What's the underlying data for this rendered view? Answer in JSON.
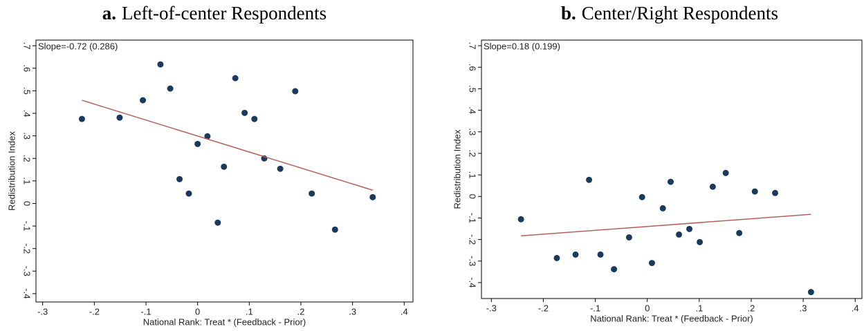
{
  "chart_data": [
    {
      "type": "scatter",
      "panel_label": "a.",
      "title": "Left-of-center Respondents",
      "xlabel": "National Rank: Treat * (Feedback - Prior)",
      "ylabel": "Redistribution Index",
      "annotation": "Slope=-0.72 (0.286)",
      "x": [
        -0.224,
        -0.151,
        -0.106,
        -0.072,
        -0.053,
        -0.035,
        -0.017,
        0.0,
        0.019,
        0.039,
        0.051,
        0.073,
        0.091,
        0.11,
        0.129,
        0.16,
        0.189,
        0.221,
        0.266,
        0.339
      ],
      "values": [
        0.375,
        0.381,
        0.458,
        0.617,
        0.51,
        0.108,
        0.044,
        0.264,
        0.298,
        -0.085,
        0.163,
        0.556,
        0.402,
        0.375,
        0.2,
        0.154,
        0.498,
        0.044,
        -0.116,
        0.028
      ],
      "color": "#1a3a5c",
      "fit_line": {
        "x": [
          -0.224,
          0.339
        ],
        "values": [
          0.458,
          0.059
        ],
        "color": "#b5615a"
      },
      "xlim": [
        -0.313,
        0.417
      ],
      "ylim": [
        -0.437,
        0.725
      ],
      "xticks": [
        {
          "value": -0.3,
          "label": "-.3"
        },
        {
          "value": -0.2,
          "label": "-.2"
        },
        {
          "value": -0.1,
          "label": "-.1"
        },
        0,
        {
          "value": 0.1,
          "label": ".1"
        },
        {
          "value": 0.2,
          "label": ".2"
        },
        {
          "value": 0.3,
          "label": ".3"
        },
        {
          "value": 0.4,
          "label": ".4"
        }
      ],
      "yticks": [
        {
          "value": -0.4,
          "label": "-.4"
        },
        {
          "value": -0.3,
          "label": "-.3"
        },
        {
          "value": -0.2,
          "label": "-.2"
        },
        {
          "value": -0.1,
          "label": "-.1"
        },
        0,
        {
          "value": 0.1,
          "label": ".1"
        },
        {
          "value": 0.2,
          "label": ".2"
        },
        {
          "value": 0.3,
          "label": ".3"
        },
        {
          "value": 0.4,
          "label": ".4"
        },
        {
          "value": 0.5,
          "label": ".5"
        },
        {
          "value": 0.6,
          "label": ".6"
        },
        {
          "value": 0.7,
          "label": ".7"
        }
      ]
    },
    {
      "type": "scatter",
      "panel_label": "b.",
      "title": "Center/Right Respondents",
      "xlabel": "National Rank: Treat * (Feedback - Prior)",
      "ylabel": "Redistribution Index",
      "annotation": "Slope=0.18 (0.199)",
      "x": [
        -0.243,
        -0.174,
        -0.138,
        -0.112,
        -0.09,
        -0.064,
        -0.035,
        -0.01,
        0.009,
        0.03,
        0.045,
        0.061,
        0.081,
        0.101,
        0.126,
        0.151,
        0.177,
        0.207,
        0.246,
        0.315
      ],
      "values": [
        -0.106,
        -0.286,
        -0.27,
        0.077,
        -0.27,
        -0.338,
        -0.19,
        -0.003,
        -0.309,
        -0.055,
        0.068,
        -0.177,
        -0.151,
        -0.212,
        0.045,
        0.109,
        -0.17,
        0.023,
        0.016,
        -0.444
      ],
      "color": "#1a3a5c",
      "fit_line": {
        "x": [
          -0.243,
          0.315
        ],
        "values": [
          -0.183,
          -0.083
        ],
        "color": "#b5615a"
      },
      "xlim": [
        -0.319,
        0.413
      ],
      "ylim": [
        -0.474,
        0.726
      ],
      "xticks": [
        {
          "value": -0.3,
          "label": "-.3"
        },
        {
          "value": -0.2,
          "label": "-.2"
        },
        {
          "value": -0.1,
          "label": "-.1"
        },
        0,
        {
          "value": 0.1,
          "label": ".1"
        },
        {
          "value": 0.2,
          "label": ".2"
        },
        {
          "value": 0.3,
          "label": ".3"
        },
        {
          "value": 0.4,
          "label": ".4"
        }
      ],
      "yticks": [
        {
          "value": -0.4,
          "label": "-.4"
        },
        {
          "value": -0.3,
          "label": "-.3"
        },
        {
          "value": -0.2,
          "label": "-.2"
        },
        {
          "value": -0.1,
          "label": "-.1"
        },
        0,
        {
          "value": 0.1,
          "label": ".1"
        },
        {
          "value": 0.2,
          "label": ".2"
        },
        {
          "value": 0.3,
          "label": ".3"
        },
        {
          "value": 0.4,
          "label": ".4"
        },
        {
          "value": 0.5,
          "label": ".5"
        },
        {
          "value": 0.6,
          "label": ".6"
        },
        {
          "value": 0.7,
          "label": ".7"
        }
      ]
    }
  ]
}
